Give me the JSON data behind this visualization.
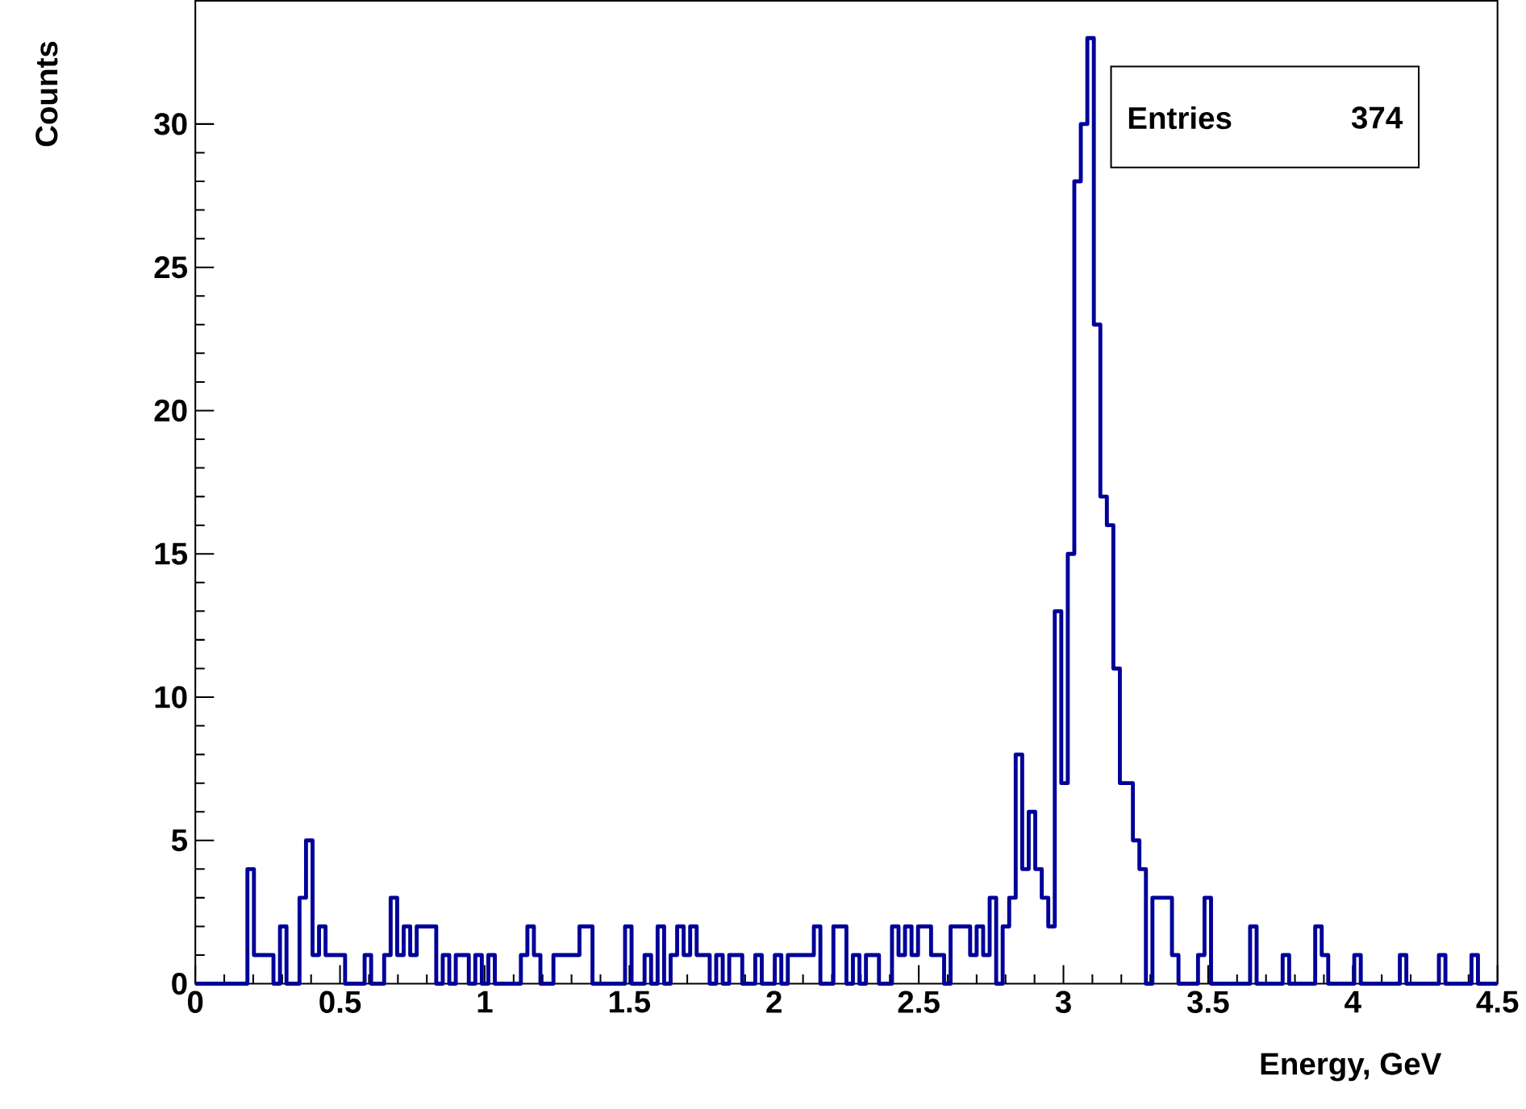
{
  "chart_data": {
    "type": "histogram",
    "xlabel": "Energy, GeV",
    "ylabel": "Counts",
    "annotations": [
      "Entries",
      "374"
    ],
    "color": "#000099",
    "bins": [
      0,
      0.0225,
      0.045,
      0.0675,
      0.09,
      0.1125,
      0.135,
      0.1575,
      0.18,
      0.2025,
      0.225,
      0.2475,
      0.27,
      0.2925,
      0.315,
      0.3375,
      0.36,
      0.3825,
      0.405,
      0.4275,
      0.45,
      0.4725,
      0.495,
      0.5175,
      0.54,
      0.5625,
      0.585,
      0.6075,
      0.63,
      0.6525,
      0.675,
      0.6975,
      0.72,
      0.7425,
      0.765,
      0.7875,
      0.81,
      0.8325,
      0.855,
      0.8775,
      0.9,
      0.9225,
      0.945,
      0.9675,
      0.99,
      1.0125,
      1.035,
      1.0575,
      1.08,
      1.1025,
      1.125,
      1.1475,
      1.17,
      1.1925,
      1.215,
      1.2375,
      1.26,
      1.2825,
      1.305,
      1.3275,
      1.35,
      1.3725,
      1.395,
      1.4175,
      1.44,
      1.4625,
      1.485,
      1.5075,
      1.53,
      1.5525,
      1.575,
      1.5975,
      1.62,
      1.6425,
      1.665,
      1.6875,
      1.71,
      1.7325,
      1.755,
      1.7775,
      1.8,
      1.8225,
      1.845,
      1.8675,
      1.89,
      1.9125,
      1.935,
      1.9575,
      1.98,
      2.0025,
      2.025,
      2.0475,
      2.07,
      2.0925,
      2.115,
      2.1375,
      2.16,
      2.1825,
      2.205,
      2.2275,
      2.25,
      2.2725,
      2.295,
      2.3175,
      2.34,
      2.3625,
      2.385,
      2.4075,
      2.43,
      2.4525,
      2.475,
      2.4975,
      2.52,
      2.5425,
      2.565,
      2.5875,
      2.61,
      2.6325,
      2.655,
      2.6775,
      2.7,
      2.7225,
      2.745,
      2.7675,
      2.79,
      2.8125,
      2.835,
      2.8575,
      2.88,
      2.9025,
      2.925,
      2.9475,
      2.97,
      2.9925,
      3.015,
      3.0375,
      3.06,
      3.0825,
      3.105,
      3.1275,
      3.15,
      3.1725,
      3.195,
      3.2175,
      3.24,
      3.2625,
      3.285,
      3.3075,
      3.33,
      3.3525,
      3.375,
      3.3975,
      3.42,
      3.4425,
      3.465,
      3.4875,
      3.51,
      3.5325,
      3.555,
      3.5775,
      3.6,
      3.6225,
      3.645,
      3.6675,
      3.69,
      3.7125,
      3.735,
      3.7575,
      3.78,
      3.8025,
      3.825,
      3.8475,
      3.87,
      3.8925,
      3.915,
      3.9375,
      3.96,
      3.9825,
      4.005,
      4.0275,
      4.05,
      4.0725,
      4.095,
      4.1175,
      4.14,
      4.1625,
      4.185,
      4.2075,
      4.23,
      4.2525,
      4.275,
      4.2975,
      4.32,
      4.3425,
      4.365,
      4.3875,
      4.41,
      4.4325,
      4.455,
      4.4775,
      4.5
    ],
    "values": [
      0,
      0,
      0,
      0,
      0,
      0,
      0,
      0,
      4,
      1,
      1,
      1,
      0,
      2,
      0,
      0,
      3,
      5,
      1,
      2,
      1,
      1,
      1,
      0,
      0,
      0,
      1,
      0,
      0,
      1,
      3,
      1,
      2,
      1,
      2,
      2,
      2,
      0,
      1,
      0,
      1,
      1,
      0,
      1,
      0,
      1,
      0,
      0,
      0,
      0,
      1,
      2,
      1,
      0,
      0,
      1,
      1,
      1,
      1,
      2,
      2,
      0,
      0,
      0,
      0,
      0,
      2,
      0,
      0,
      1,
      0,
      2,
      0,
      1,
      2,
      1,
      2,
      1,
      1,
      0,
      1,
      0,
      1,
      1,
      0,
      0,
      1,
      0,
      0,
      1,
      0,
      1,
      1,
      1,
      1,
      2,
      0,
      0,
      2,
      2,
      0,
      1,
      0,
      1,
      1,
      0,
      0,
      2,
      1,
      2,
      1,
      2,
      2,
      1,
      1,
      0,
      2,
      2,
      2,
      1,
      2,
      1,
      3,
      0,
      2,
      3,
      8,
      4,
      6,
      4,
      3,
      2,
      13,
      7,
      15,
      28,
      30,
      33,
      23,
      17,
      16,
      11,
      7,
      7,
      5,
      4,
      0,
      3,
      3,
      3,
      1,
      0,
      0,
      0,
      1,
      3,
      0,
      0,
      0,
      0,
      0,
      0,
      2,
      0,
      0,
      0,
      0,
      1,
      0,
      0,
      0,
      0,
      2,
      1,
      0,
      0,
      0,
      0,
      1,
      0,
      0,
      0,
      0,
      0,
      0,
      1,
      0,
      0,
      0,
      0,
      0,
      1,
      0,
      0,
      0,
      0,
      1,
      0,
      0,
      0
    ],
    "xlim": [
      0,
      4.5
    ],
    "ylim": [
      0,
      34.3
    ],
    "xticks": [
      0,
      0.5,
      1,
      1.5,
      2,
      2.5,
      3,
      3.5,
      4,
      4.5
    ],
    "yticks": [
      0,
      5,
      10,
      15,
      20,
      25,
      30
    ]
  }
}
